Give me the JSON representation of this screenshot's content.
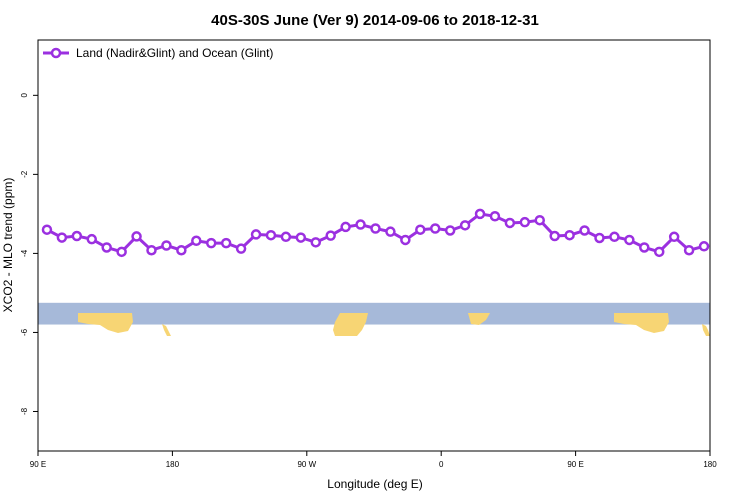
{
  "chart_data": {
    "type": "line",
    "title": "40S-30S June (Ver 9)   2014-09-06 to 2018-12-31",
    "xlabel": "Longitude (deg E)",
    "ylabel": "XCO2 - MLO trend (ppm)",
    "xlim": [
      90,
      540
    ],
    "ylim": [
      -9,
      1.4
    ],
    "x_ticks": [
      {
        "value": 90,
        "label": "90 E"
      },
      {
        "value": 180,
        "label": "180"
      },
      {
        "value": 270,
        "label": "90 W"
      },
      {
        "value": 360,
        "label": "0"
      },
      {
        "value": 450,
        "label": "90 E"
      },
      {
        "value": 540,
        "label": "180"
      }
    ],
    "y_ticks": [
      {
        "value": 0,
        "label": "0"
      },
      {
        "value": -2,
        "label": "-2"
      },
      {
        "value": -4,
        "label": "-4"
      },
      {
        "value": -6,
        "label": "-6"
      },
      {
        "value": -8,
        "label": "-8"
      }
    ],
    "grid": false,
    "legend_position": "top-left",
    "series": [
      {
        "name": "Land (Nadir&Glint) and Ocean (Glint)",
        "color": "#9b30e0",
        "x": [
          96,
          106,
          116,
          126,
          136,
          146,
          156,
          166,
          176,
          186,
          196,
          206,
          216,
          226,
          236,
          246,
          256,
          266,
          276,
          286,
          296,
          306,
          316,
          326,
          336,
          346,
          356,
          366,
          376,
          386,
          396,
          406,
          416,
          426,
          436,
          446,
          456,
          466,
          476,
          486,
          496,
          506,
          516,
          526,
          536
        ],
        "y": [
          -3.4,
          -3.6,
          -3.56,
          -3.64,
          -3.85,
          -3.96,
          -3.57,
          -3.92,
          -3.8,
          -3.92,
          -3.68,
          -3.74,
          -3.74,
          -3.88,
          -3.52,
          -3.54,
          -3.58,
          -3.6,
          -3.72,
          -3.55,
          -3.33,
          -3.27,
          -3.37,
          -3.45,
          -3.66,
          -3.4,
          -3.37,
          -3.42,
          -3.29,
          -3.0,
          -3.06,
          -3.23,
          -3.21,
          -3.16,
          -3.56,
          -3.54,
          -3.42,
          -3.61,
          -3.58,
          -3.66,
          -3.85,
          -3.96,
          -3.58,
          -3.92,
          -3.82
        ]
      }
    ],
    "map_strip": {
      "y_range": [
        -5.8,
        -5.25
      ],
      "ocean_color": "#a6b9d9",
      "land_color": "#f7d574"
    }
  }
}
